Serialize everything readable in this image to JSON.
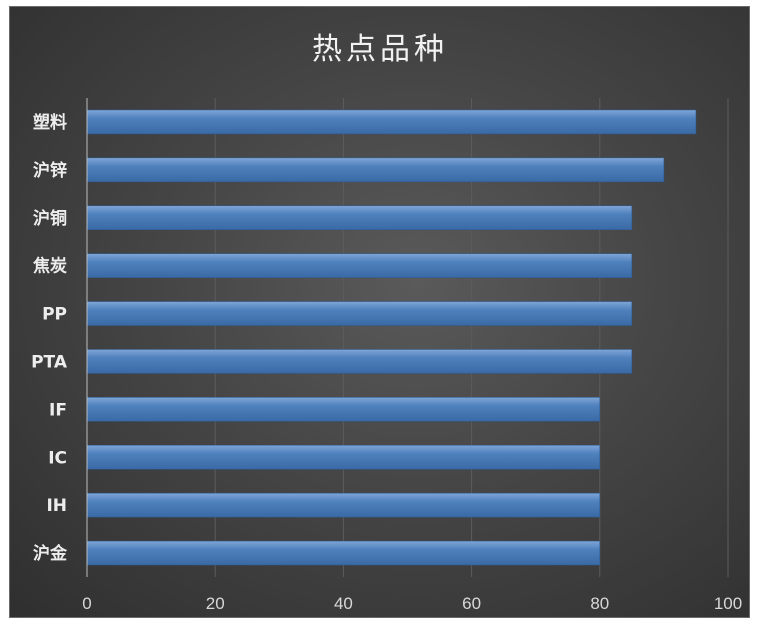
{
  "chart_data": {
    "type": "bar",
    "orientation": "horizontal",
    "title": "热点品种",
    "categories": [
      "塑料",
      "沪锌",
      "沪铜",
      "焦炭",
      "PP",
      "PTA",
      "IF",
      "IC",
      "IH",
      "沪金"
    ],
    "values": [
      95,
      90,
      85,
      85,
      85,
      85,
      80,
      80,
      80,
      80
    ],
    "xlim": [
      0,
      100
    ],
    "xticks": [
      0,
      20,
      40,
      60,
      80,
      100
    ],
    "xlabel": "",
    "ylabel": "",
    "grid": true,
    "legend": "none",
    "bar_color": "#4f81bd",
    "background_color": "#404040"
  }
}
